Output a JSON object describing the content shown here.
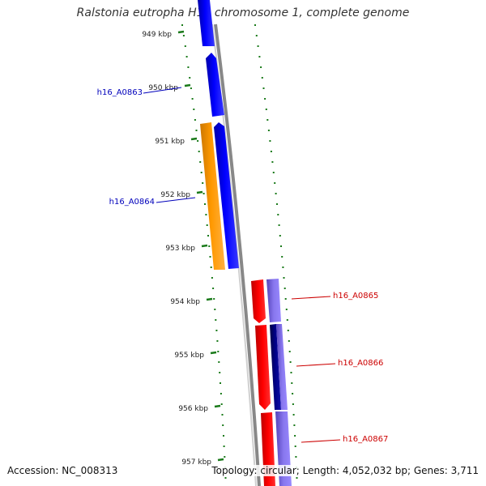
{
  "title": "Ralstonia eutropha H16 chromosome 1, complete genome",
  "footer": {
    "accession": "Accession: NC_008313",
    "summary": "Topology: circular; Length: 4,052,032 bp; Genes: 3,711"
  },
  "ticks": [
    "949 kbp",
    "950 kbp",
    "951 kbp",
    "952 kbp",
    "953 kbp",
    "954 kbp",
    "955 kbp",
    "956 kbp",
    "957 kbp"
  ],
  "gene_labels": [
    {
      "name": "h16_A0863",
      "color": "#0000bb"
    },
    {
      "name": "h16_A0864",
      "color": "#0000bb"
    },
    {
      "name": "h16_A0865",
      "color": "#cc0000"
    },
    {
      "name": "h16_A0866",
      "color": "#cc0000"
    },
    {
      "name": "h16_A0867",
      "color": "#cc0000"
    }
  ],
  "colors": {
    "forward_cds": "#0000ee",
    "orange_feature": "#ff9900",
    "reverse_cds": "#ee0000",
    "purple_feature": "#7766dd",
    "backbone": "#888888",
    "dots": "#1a7a1a"
  }
}
